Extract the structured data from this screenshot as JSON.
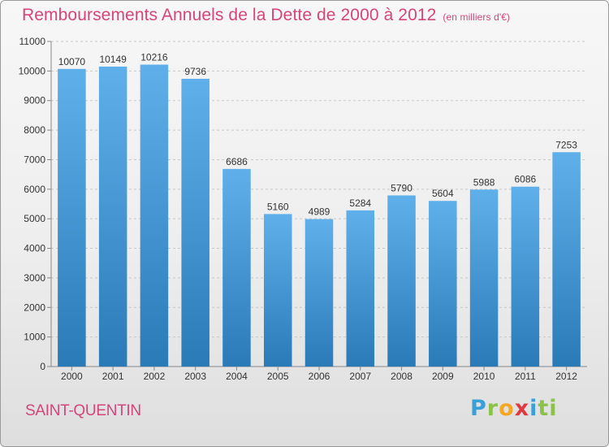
{
  "header": {
    "title": "Remboursements Annuels de la Dette de 2000 à 2012",
    "subtitle": "(en milliers d'€)"
  },
  "footer": {
    "city": "SAINT-QUENTIN",
    "logo": [
      "P",
      "r",
      "o",
      "x",
      "i",
      "ti"
    ]
  },
  "colors": {
    "title": "#d4457a",
    "bar_top": "#5fb0ea",
    "bar_bottom": "#2a7ab8"
  },
  "chart_data": {
    "type": "bar",
    "categories": [
      "2000",
      "2001",
      "2002",
      "2003",
      "2004",
      "2005",
      "2006",
      "2007",
      "2008",
      "2009",
      "2010",
      "2011",
      "2012"
    ],
    "values": [
      10070,
      10149,
      10216,
      9736,
      6686,
      5160,
      4989,
      5284,
      5790,
      5604,
      5988,
      6086,
      7253
    ],
    "ylim": [
      0,
      11000
    ],
    "yticks": [
      0,
      1000,
      2000,
      3000,
      4000,
      5000,
      6000,
      7000,
      8000,
      9000,
      10000,
      11000
    ],
    "grid": true,
    "data_labels": true
  }
}
